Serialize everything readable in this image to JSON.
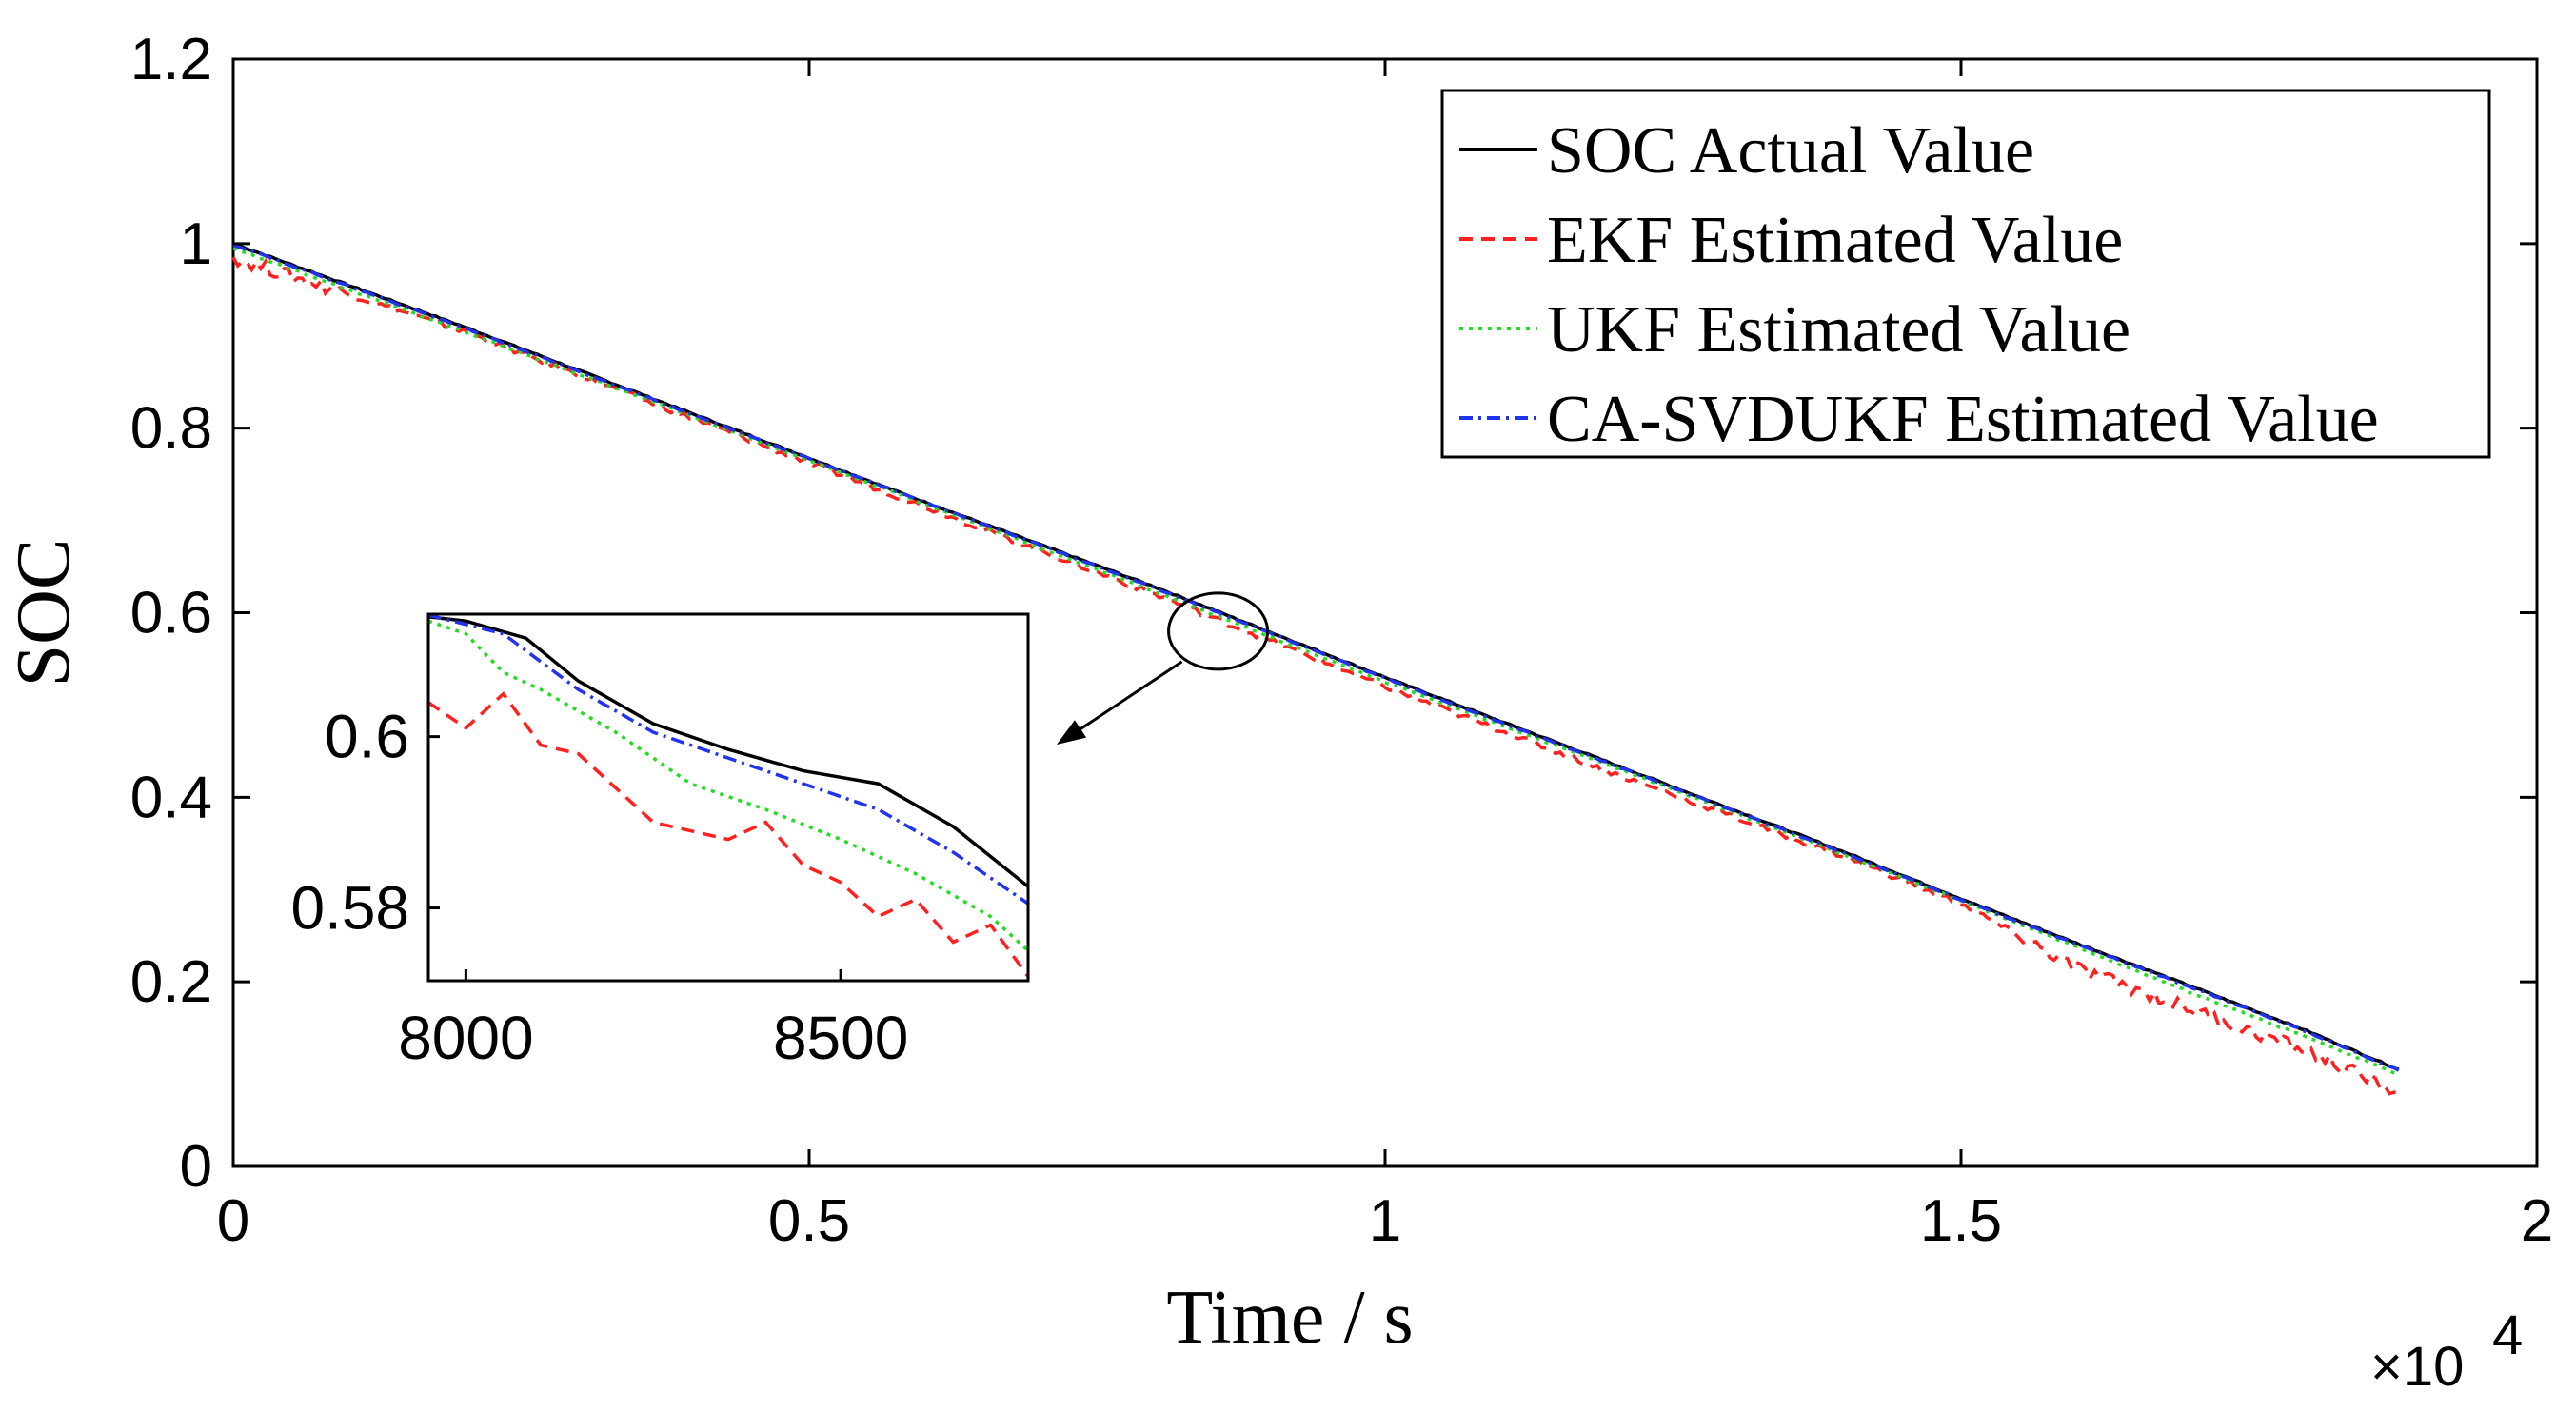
{
  "chart_data": {
    "type": "line",
    "title": "",
    "xlabel": "Time / s",
    "ylabel": "SOC",
    "x_multiplier_label": "×10",
    "x_multiplier_exponent": "4",
    "xlim": [
      0,
      2
    ],
    "ylim": [
      0,
      1.2
    ],
    "x_ticks": [
      "0",
      "0.5",
      "1",
      "1.5",
      "2"
    ],
    "y_ticks": [
      "0",
      "0.2",
      "0.4",
      "0.6",
      "0.8",
      "1",
      "1.2"
    ],
    "grid": false,
    "legend_position": "top-right",
    "series": [
      {
        "name": "SOC Actual Value",
        "color": "#000000",
        "style": "solid",
        "x": [
          0,
          0.2,
          0.4,
          0.6,
          0.8,
          1.0,
          1.2,
          1.4,
          1.5,
          1.6,
          1.7,
          1.8,
          1.88
        ],
        "y": [
          1.0,
          0.91,
          0.815,
          0.72,
          0.628,
          0.53,
          0.435,
          0.34,
          0.29,
          0.242,
          0.195,
          0.147,
          0.105
        ]
      },
      {
        "name": "EKF Estimated Value",
        "color": "#ff2020",
        "style": "dashed",
        "x": [
          0,
          0.2,
          0.4,
          0.6,
          0.8,
          1.0,
          1.2,
          1.4,
          1.5,
          1.55,
          1.6,
          1.7,
          1.8,
          1.88
        ],
        "y": [
          0.985,
          0.905,
          0.81,
          0.715,
          0.62,
          0.52,
          0.425,
          0.335,
          0.285,
          0.25,
          0.215,
          0.17,
          0.125,
          0.08
        ]
      },
      {
        "name": "UKF Estimated Value",
        "color": "#22dd22",
        "style": "dotted",
        "x": [
          0,
          0.2,
          0.4,
          0.6,
          0.8,
          1.0,
          1.2,
          1.4,
          1.5,
          1.6,
          1.7,
          1.8,
          1.88
        ],
        "y": [
          0.995,
          0.905,
          0.812,
          0.718,
          0.623,
          0.525,
          0.432,
          0.337,
          0.288,
          0.238,
          0.188,
          0.14,
          0.1
        ]
      },
      {
        "name": "CA-SVDUKF Estimated Value",
        "color": "#2233ee",
        "style": "dashdot",
        "x": [
          0,
          0.2,
          0.4,
          0.6,
          0.8,
          1.0,
          1.2,
          1.4,
          1.5,
          1.6,
          1.7,
          1.8,
          1.88
        ],
        "y": [
          0.999,
          0.909,
          0.814,
          0.72,
          0.627,
          0.529,
          0.434,
          0.339,
          0.289,
          0.241,
          0.194,
          0.146,
          0.104
        ]
      }
    ],
    "inset": {
      "xlim": [
        7950,
        8750
      ],
      "ylim": [
        0.5715,
        0.6143
      ],
      "x_ticks": [
        "8000",
        "8500"
      ],
      "y_ticks": [
        "0.58",
        "0.6"
      ],
      "x_tick_values": [
        8000,
        8500
      ],
      "y_tick_values": [
        0.58,
        0.6
      ],
      "series": [
        {
          "name": "SOC Actual Value",
          "x": [
            7950,
            8000,
            8080,
            8150,
            8250,
            8350,
            8450,
            8550,
            8650,
            8750
          ],
          "y": [
            0.614,
            0.6135,
            0.6115,
            0.6065,
            0.6015,
            0.5985,
            0.596,
            0.5945,
            0.5895,
            0.5825
          ]
        },
        {
          "name": "EKF Estimated Value",
          "x": [
            7950,
            8000,
            8050,
            8100,
            8150,
            8200,
            8250,
            8300,
            8350,
            8400,
            8450,
            8500,
            8550,
            8600,
            8650,
            8700,
            8750
          ],
          "y": [
            0.604,
            0.601,
            0.605,
            0.599,
            0.598,
            0.594,
            0.59,
            0.589,
            0.588,
            0.59,
            0.585,
            0.583,
            0.579,
            0.581,
            0.576,
            0.578,
            0.572
          ]
        },
        {
          "name": "UKF Estimated Value",
          "x": [
            7950,
            8000,
            8050,
            8100,
            8200,
            8300,
            8400,
            8500,
            8600,
            8700,
            8750
          ],
          "y": [
            0.6135,
            0.612,
            0.6075,
            0.6055,
            0.6005,
            0.5945,
            0.5915,
            0.588,
            0.584,
            0.579,
            0.575
          ]
        },
        {
          "name": "CA-SVDUKF Estimated Value",
          "x": [
            7950,
            8050,
            8150,
            8250,
            8350,
            8450,
            8550,
            8650,
            8750
          ],
          "y": [
            0.6142,
            0.612,
            0.6055,
            0.6005,
            0.5975,
            0.5945,
            0.5915,
            0.5865,
            0.5805
          ]
        }
      ]
    }
  }
}
